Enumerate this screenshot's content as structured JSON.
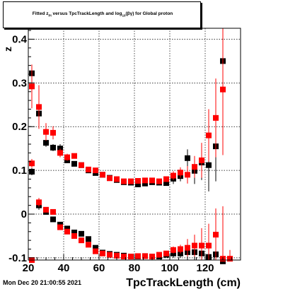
{
  "chart_data": {
    "type": "scatter",
    "title": "Fitted z_{Pi} versus TpcTrackLength and log_{10}(βγ) for Global proton",
    "title_parts": {
      "pre": "Fitted  z",
      "sub1": "Pi",
      "mid": "  versus TpcTrackLength and log",
      "sub2": "10",
      "post": "(βγ) for Global proton"
    },
    "xlabel": "TpcTrackLength (cm)",
    "ylabel": "z_{Pi}",
    "ylabel_display": "z",
    "xlim": [
      20,
      140
    ],
    "ylim": [
      -0.105,
      0.425
    ],
    "xticks": [
      20,
      40,
      60,
      80,
      100,
      120
    ],
    "yticks": [
      -0.1,
      0,
      0.1,
      0.2,
      0.3,
      0.4
    ],
    "ytick_labels": [
      "-0.1",
      "0",
      "0.1",
      "0.2",
      "0.3",
      "0.4"
    ],
    "grid": true,
    "colors": {
      "black_series": "#000000",
      "red_series": "#ff0000"
    },
    "series": [
      {
        "color": "black",
        "marker": "square",
        "points": [
          [
            22,
            0.322,
            0.006
          ],
          [
            22,
            0.097,
            0.008
          ],
          [
            22,
            -0.105,
            0.004
          ],
          [
            26,
            0.23,
            0.005
          ],
          [
            26,
            0.02,
            0.01
          ],
          [
            30,
            0.163,
            0.009
          ],
          [
            30,
            0.005,
            0.006
          ],
          [
            34,
            0.152,
            0.008
          ],
          [
            34,
            -0.012,
            0.004
          ],
          [
            38,
            0.15,
            0.01
          ],
          [
            38,
            -0.024,
            0.005
          ],
          [
            42,
            0.123,
            0.006
          ],
          [
            42,
            -0.033,
            0.005
          ],
          [
            46,
            0.115,
            0.005
          ],
          [
            46,
            -0.042,
            0.004
          ],
          [
            50,
            0.112,
            0.004
          ],
          [
            50,
            -0.045,
            0.003
          ],
          [
            54,
            0.1,
            0.004
          ],
          [
            54,
            -0.057,
            0.003
          ],
          [
            58,
            0.094,
            0.004
          ],
          [
            58,
            -0.077,
            0.003
          ],
          [
            62,
            0.09,
            0.003
          ],
          [
            62,
            -0.088,
            0.003
          ],
          [
            66,
            0.083,
            0.003
          ],
          [
            66,
            -0.091,
            0.003
          ],
          [
            70,
            0.078,
            0.003
          ],
          [
            70,
            -0.093,
            0.003
          ],
          [
            74,
            0.073,
            0.003
          ],
          [
            74,
            -0.095,
            0.003
          ],
          [
            78,
            0.072,
            0.003
          ],
          [
            78,
            -0.097,
            0.003
          ],
          [
            82,
            0.068,
            0.003
          ],
          [
            82,
            -0.097,
            0.003
          ],
          [
            86,
            0.07,
            0.003
          ],
          [
            86,
            -0.096,
            0.003
          ],
          [
            90,
            0.073,
            0.003
          ],
          [
            90,
            -0.097,
            0.003
          ],
          [
            94,
            0.072,
            0.004
          ],
          [
            94,
            -0.097,
            0.003
          ],
          [
            98,
            0.071,
            0.005
          ],
          [
            98,
            -0.093,
            0.004
          ],
          [
            102,
            0.081,
            0.012
          ],
          [
            102,
            -0.09,
            0.01
          ],
          [
            106,
            0.087,
            0.012
          ],
          [
            106,
            -0.09,
            0.01
          ],
          [
            110,
            0.128,
            0.02
          ],
          [
            110,
            -0.087,
            0.015
          ],
          [
            114,
            0.099,
            0.03
          ],
          [
            114,
            -0.087,
            0.025
          ],
          [
            118,
            0.118,
            0.04
          ],
          [
            118,
            -0.09,
            0.03
          ],
          [
            122,
            0.112,
            0.06
          ],
          [
            122,
            -0.098,
            0.03
          ],
          [
            126,
            0.155,
            0.08
          ],
          [
            126,
            -0.092,
            0.05
          ],
          [
            130,
            0.35,
            0.08
          ],
          [
            130,
            -0.108,
            0.06
          ]
        ]
      },
      {
        "color": "red",
        "marker": "square",
        "points": [
          [
            22,
            0.292,
            0.05
          ],
          [
            22,
            0.116,
            0.01
          ],
          [
            22,
            -0.105,
            0.004
          ],
          [
            26,
            0.245,
            0.05
          ],
          [
            26,
            0.027,
            0.01
          ],
          [
            30,
            0.188,
            0.02
          ],
          [
            30,
            0.01,
            0.006
          ],
          [
            34,
            0.186,
            0.015
          ],
          [
            34,
            0.005,
            0.006
          ],
          [
            38,
            0.14,
            0.01
          ],
          [
            38,
            -0.03,
            0.005
          ],
          [
            42,
            0.13,
            0.008
          ],
          [
            42,
            -0.04,
            0.004
          ],
          [
            46,
            0.133,
            0.006
          ],
          [
            46,
            -0.05,
            0.004
          ],
          [
            50,
            0.112,
            0.005
          ],
          [
            50,
            -0.06,
            0.003
          ],
          [
            54,
            0.102,
            0.004
          ],
          [
            54,
            -0.07,
            0.003
          ],
          [
            58,
            0.1,
            0.004
          ],
          [
            58,
            -0.085,
            0.003
          ],
          [
            62,
            0.09,
            0.003
          ],
          [
            62,
            -0.09,
            0.003
          ],
          [
            66,
            0.082,
            0.003
          ],
          [
            66,
            -0.093,
            0.003
          ],
          [
            70,
            0.08,
            0.003
          ],
          [
            70,
            -0.095,
            0.003
          ],
          [
            74,
            0.075,
            0.003
          ],
          [
            74,
            -0.097,
            0.003
          ],
          [
            78,
            0.075,
            0.003
          ],
          [
            78,
            -0.097,
            0.003
          ],
          [
            82,
            0.076,
            0.003
          ],
          [
            82,
            -0.096,
            0.003
          ],
          [
            86,
            0.077,
            0.003
          ],
          [
            86,
            -0.096,
            0.003
          ],
          [
            90,
            0.077,
            0.003
          ],
          [
            90,
            -0.097,
            0.003
          ],
          [
            94,
            0.075,
            0.004
          ],
          [
            94,
            -0.093,
            0.004
          ],
          [
            98,
            0.08,
            0.006
          ],
          [
            98,
            -0.09,
            0.005
          ],
          [
            102,
            0.088,
            0.01
          ],
          [
            102,
            -0.082,
            0.008
          ],
          [
            106,
            0.095,
            0.012
          ],
          [
            106,
            -0.08,
            0.01
          ],
          [
            110,
            0.09,
            0.02
          ],
          [
            110,
            -0.077,
            0.02
          ],
          [
            114,
            0.108,
            0.025
          ],
          [
            114,
            -0.072,
            0.025
          ],
          [
            118,
            0.123,
            0.04
          ],
          [
            118,
            -0.072,
            0.04
          ],
          [
            122,
            0.18,
            0.06
          ],
          [
            122,
            -0.072,
            0.05
          ],
          [
            126,
            0.22,
            0.09
          ],
          [
            126,
            -0.047,
            0.06
          ],
          [
            130,
            0.285,
            0.15
          ],
          [
            130,
            -0.102,
            0.12
          ],
          [
            134,
            -0.102,
            0.02
          ]
        ]
      }
    ]
  },
  "footer": {
    "datetime": "Mon Dec 20 21:00:55 2021"
  }
}
